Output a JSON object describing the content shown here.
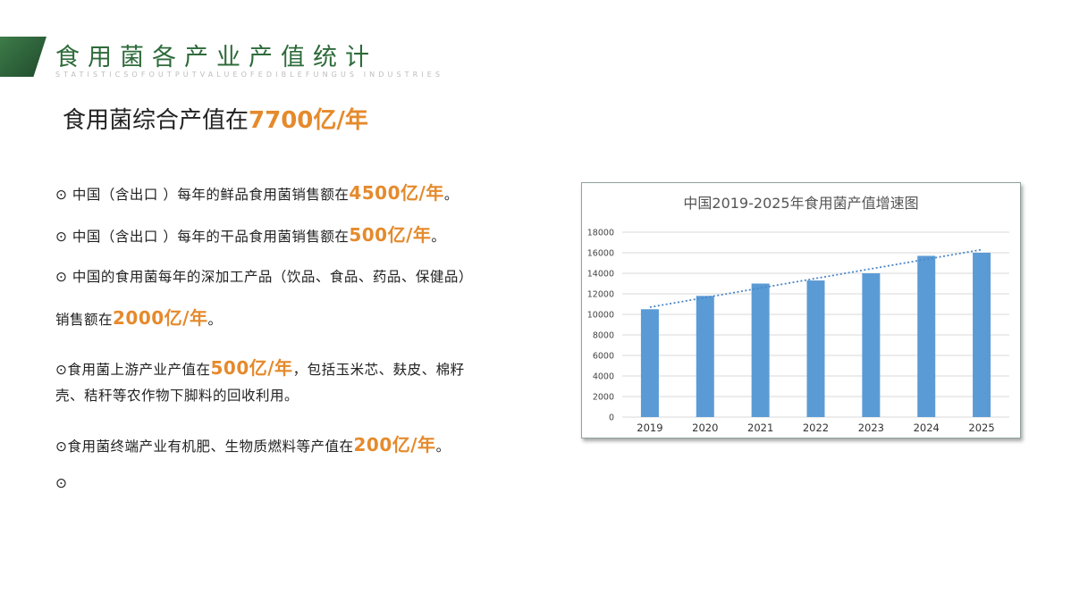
{
  "header": {
    "title": "食用菌各产业产值统计",
    "subtitle": "STATISTICSOFOUTPUTVALUEOFEDIBLEFUNGUS INDUSTRIES"
  },
  "headline": {
    "prefix": "食用菌综合产值在",
    "value": "7700亿/年"
  },
  "bullets": [
    {
      "prefix": "⊙ 中国（含出口 ）每年的鲜品食用菌销售额在",
      "value": "4500亿/年",
      "suffix": "。"
    },
    {
      "prefix": "⊙ 中国（含出口 ）每年的干品食用菌销售额在",
      "value": "500亿/年",
      "suffix": "。"
    },
    {
      "line1": "⊙ 中国的食用菌每年的深加工产品（饮品、食品、药品、保健品）",
      "prefix": "销售额在",
      "value": "2000亿/年",
      "suffix": "。"
    },
    {
      "prefix": "⊙食用菌上游产业产值在",
      "value": "500亿/年",
      "suffix": "，包括玉米芯、麸皮、棉籽",
      "line2": "壳、秸秆等农作物下脚料的回收利用。"
    },
    {
      "prefix": "⊙食用菌终端产业有机肥、生物质燃料等产值在",
      "value": "200亿/年",
      "suffix": "。"
    },
    {
      "prefix": "⊙"
    }
  ],
  "chart_data": {
    "type": "bar",
    "title": "中国2019-2025年食用菌产值增速图",
    "categories": [
      "2019",
      "2020",
      "2021",
      "2022",
      "2023",
      "2024",
      "2025"
    ],
    "values": [
      10500,
      11800,
      13000,
      13300,
      14000,
      15700,
      16000
    ],
    "ylim": [
      0,
      18000
    ],
    "yticks": [
      0,
      2000,
      4000,
      6000,
      8000,
      10000,
      12000,
      14000,
      16000,
      18000
    ],
    "trendline": {
      "style": "dotted",
      "start": 10700,
      "end": 16300
    },
    "grid": true,
    "legend": "none",
    "colors": {
      "bar": "#5b9bd5",
      "trend": "#4a86c8",
      "grid": "#d9d9d9"
    }
  }
}
